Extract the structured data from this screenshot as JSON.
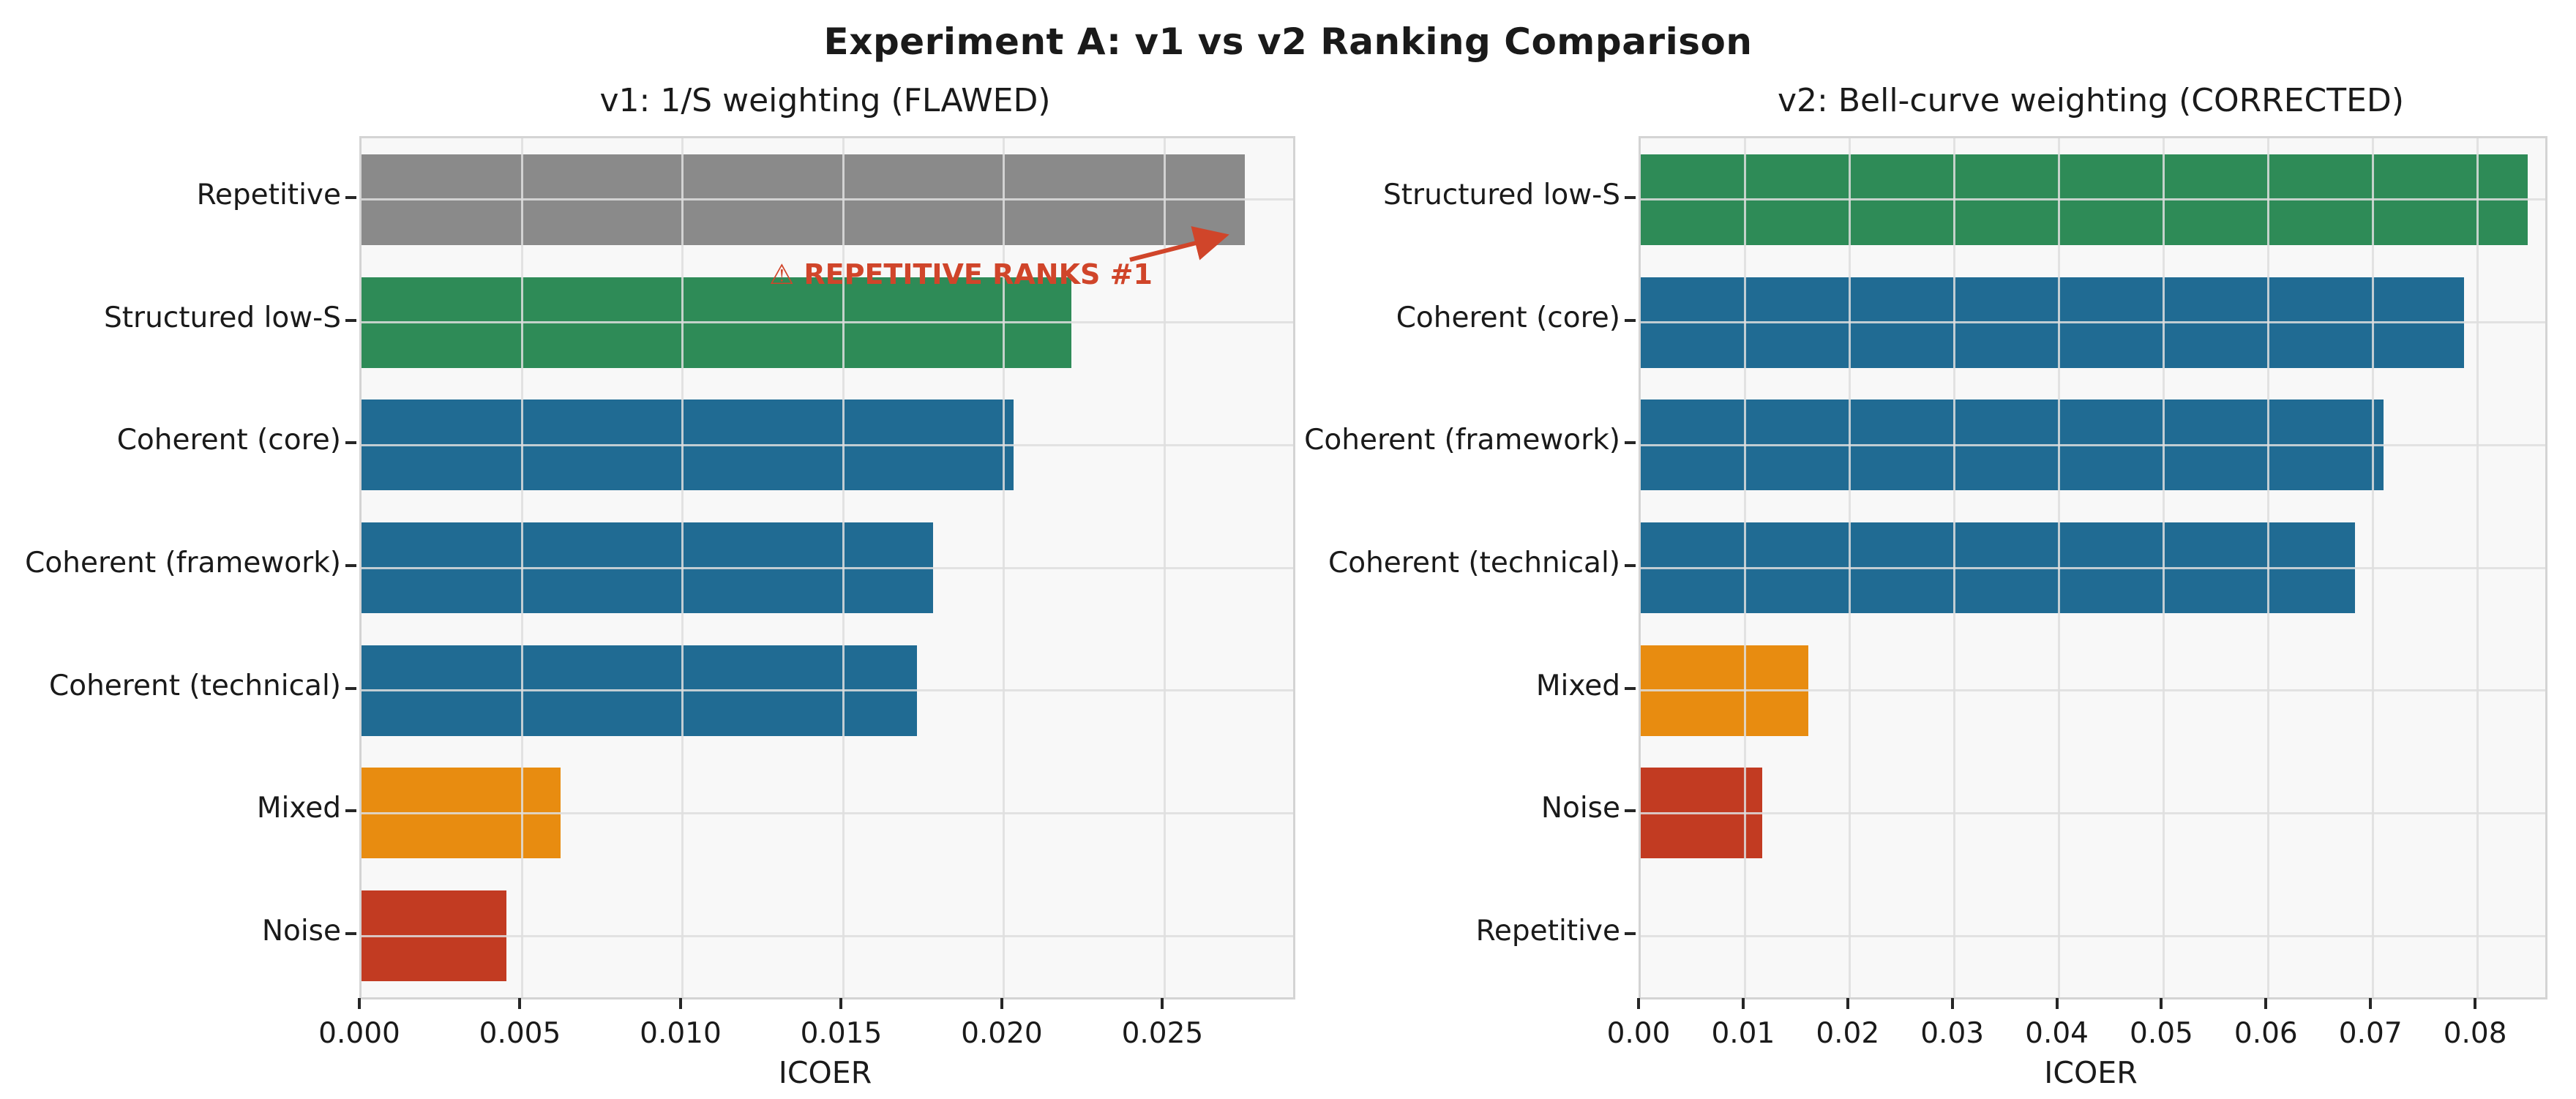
{
  "figure": {
    "title": "Experiment A: v1 vs v2 Ranking Comparison"
  },
  "palette": {
    "gray": "#8a8a8a",
    "green": "#2e8b57",
    "blue": "#206b93",
    "orange": "#e88c10",
    "red": "#c23b22",
    "annotation_red": "#d0452a",
    "panel_bg": "#f8f8f8",
    "spine": "#d4d4d4",
    "text": "#1a1a1a"
  },
  "chart_data": [
    {
      "type": "bar",
      "orientation": "horizontal",
      "title": "v1: 1/S weighting (FLAWED)",
      "xlabel": "ICOER",
      "categories": [
        "Repetitive",
        "Structured low-S",
        "Coherent (core)",
        "Coherent (framework)",
        "Coherent (technical)",
        "Mixed",
        "Noise"
      ],
      "values": [
        0.0275,
        0.0221,
        0.0203,
        0.0178,
        0.0173,
        0.0062,
        0.0045
      ],
      "bar_colors": [
        "#8a8a8a",
        "#2e8b57",
        "#206b93",
        "#206b93",
        "#206b93",
        "#e88c10",
        "#c23b22"
      ],
      "xticks": [
        0.0,
        0.005,
        0.01,
        0.015,
        0.02,
        0.025
      ],
      "xtick_labels": [
        "0.000",
        "0.005",
        "0.010",
        "0.015",
        "0.020",
        "0.025"
      ],
      "xlim": [
        0,
        0.029
      ],
      "grid": true,
      "annotation": {
        "text": "⚠ REPETITIVE RANKS #1",
        "color": "#d0452a",
        "target_category": "Repetitive"
      }
    },
    {
      "type": "bar",
      "orientation": "horizontal",
      "title": "v2: Bell-curve weighting (CORRECTED)",
      "xlabel": "ICOER",
      "categories": [
        "Structured low-S",
        "Coherent (core)",
        "Coherent (framework)",
        "Coherent (technical)",
        "Mixed",
        "Noise",
        "Repetitive"
      ],
      "values": [
        0.0848,
        0.0787,
        0.071,
        0.0683,
        0.016,
        0.0116,
        0.0
      ],
      "bar_colors": [
        "#2e8b57",
        "#206b93",
        "#206b93",
        "#206b93",
        "#e88c10",
        "#c23b22",
        "#8a8a8a"
      ],
      "xticks": [
        0.0,
        0.01,
        0.02,
        0.03,
        0.04,
        0.05,
        0.06,
        0.07,
        0.08
      ],
      "xtick_labels": [
        "0.00",
        "0.01",
        "0.02",
        "0.03",
        "0.04",
        "0.05",
        "0.06",
        "0.07",
        "0.08"
      ],
      "xlim": [
        0,
        0.0865
      ],
      "grid": true
    }
  ]
}
